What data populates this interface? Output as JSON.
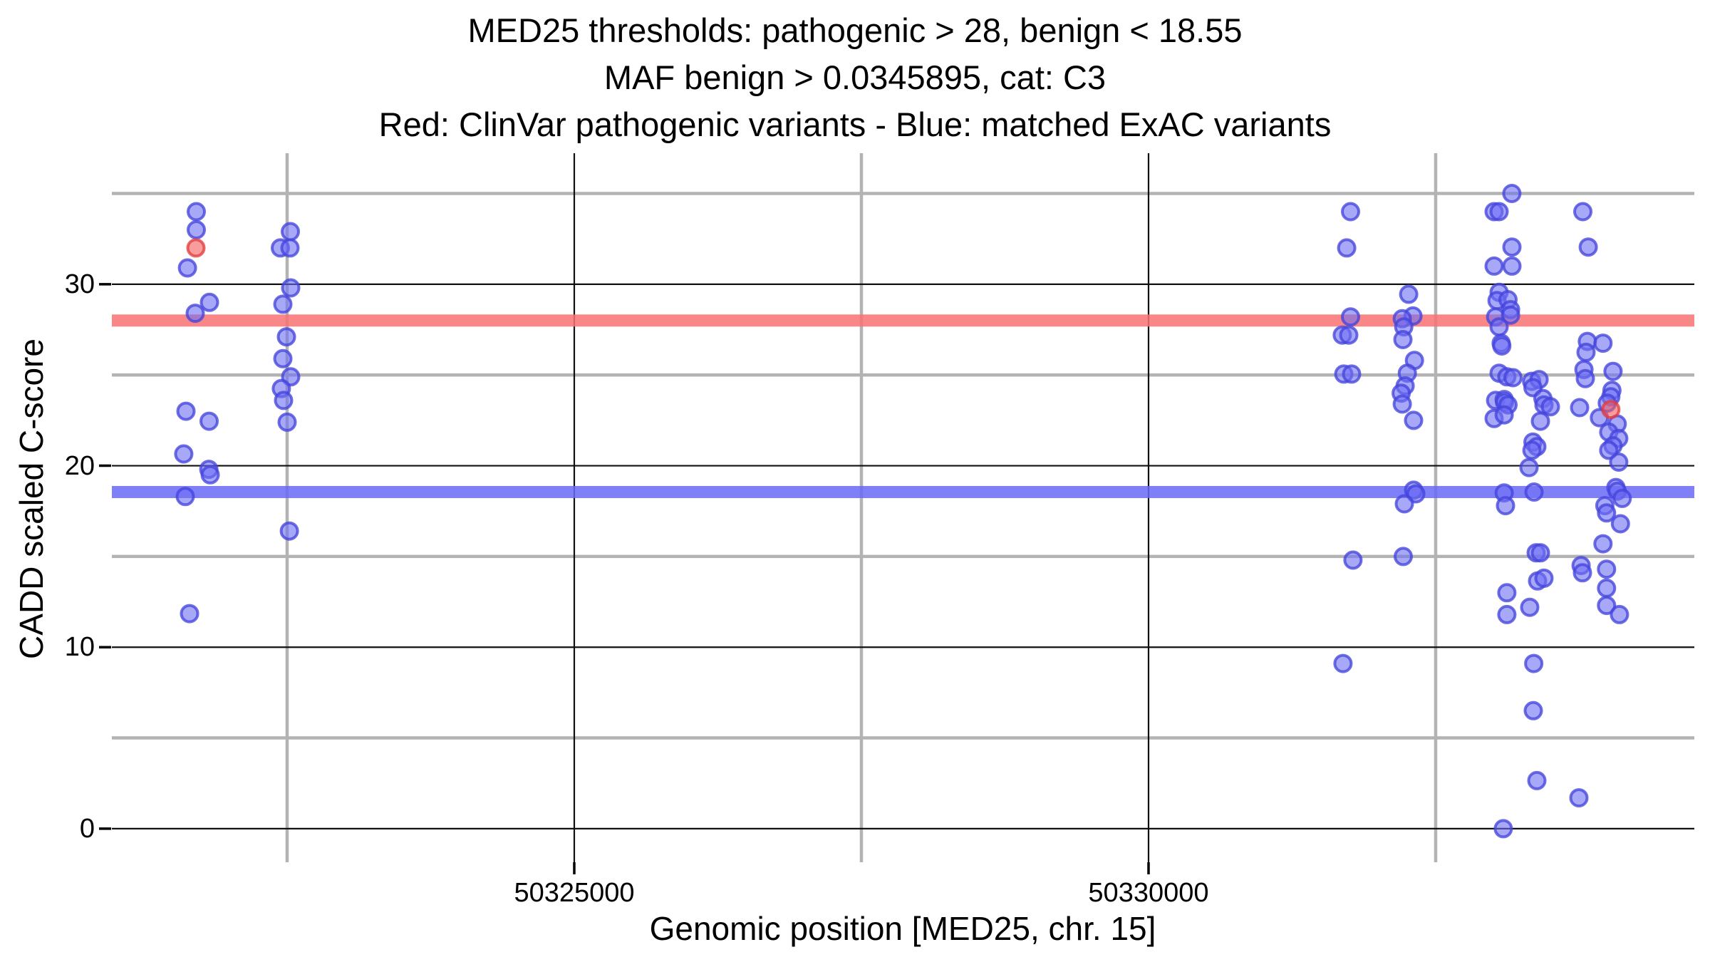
{
  "chart_data": {
    "type": "scatter",
    "title_lines": [
      "MED25 thresholds: pathogenic > 28, benign < 18.55",
      "MAF benign > 0.0345895, cat: C3",
      "Red: ClinVar pathogenic variants - Blue: matched ExAC variants"
    ],
    "xlabel": "Genomic position [MED25, chr. 15]",
    "ylabel": "CADD scaled C-score",
    "gene": "MED25",
    "category": "C3",
    "thresholds": {
      "pathogenic": 28,
      "benign": 18.55,
      "maf_benign": 0.0345895
    },
    "xlim": [
      50320974,
      50334752
    ],
    "ylim": [
      -1.85,
      37.22
    ],
    "x_ticks": [
      50325000,
      50330000
    ],
    "x_minor_ticks": [
      50322500,
      50327500,
      50332500
    ],
    "y_ticks": [
      0,
      10,
      20,
      30
    ],
    "y_minor_ticks": [
      5,
      15,
      25,
      35
    ],
    "grid": "major-black-minor-gray",
    "legend_position": "none",
    "colors": {
      "pathogenic_band": "#f87272",
      "benign_band": "#6969f7",
      "blue_point_fill": "#6e6ef5",
      "blue_point_stroke": "#4444dc",
      "red_point_fill": "#f55a5a",
      "red_point_stroke": "#e13c3c",
      "major_grid": "#111111",
      "minor_grid": "#b3b3b3"
    },
    "series": [
      {
        "name": "ClinVar pathogenic variants",
        "color_key": "red",
        "points": [
          [
            50321706,
            32.0
          ],
          [
            50334025,
            23.1
          ]
        ]
      },
      {
        "name": "matched ExAC variants",
        "color_key": "blue",
        "points": [
          [
            50321709,
            34
          ],
          [
            50321709,
            33
          ],
          [
            50321632,
            30.9
          ],
          [
            50321824,
            29
          ],
          [
            50321700,
            28.4
          ],
          [
            50321619,
            23
          ],
          [
            50321821,
            22.45
          ],
          [
            50321600,
            20.65
          ],
          [
            50321818,
            19.8
          ],
          [
            50321830,
            19.5
          ],
          [
            50321613,
            18.3
          ],
          [
            50321650,
            11.85
          ],
          [
            50322528,
            32.9
          ],
          [
            50322441,
            32
          ],
          [
            50322525,
            32
          ],
          [
            50322531,
            29.8
          ],
          [
            50322463,
            28.9
          ],
          [
            50322494,
            27.1
          ],
          [
            50322463,
            25.9
          ],
          [
            50322531,
            24.9
          ],
          [
            50322450,
            24.25
          ],
          [
            50322469,
            23.6
          ],
          [
            50322500,
            22.4
          ],
          [
            50322519,
            16.4
          ],
          [
            50331759,
            34
          ],
          [
            50331725,
            32
          ],
          [
            50331759,
            28.2
          ],
          [
            50331687,
            27.2
          ],
          [
            50331743,
            27.2
          ],
          [
            50331700,
            25.05
          ],
          [
            50331768,
            25.05
          ],
          [
            50331780,
            14.8
          ],
          [
            50331693,
            9.1
          ],
          [
            50332265,
            29.45
          ],
          [
            50332302,
            28.25
          ],
          [
            50332209,
            28.1
          ],
          [
            50332222,
            27.65
          ],
          [
            50332215,
            26.95
          ],
          [
            50332315,
            25.8
          ],
          [
            50332253,
            25.1
          ],
          [
            50332234,
            24.4
          ],
          [
            50332200,
            24
          ],
          [
            50332209,
            23.4
          ],
          [
            50332308,
            22.5
          ],
          [
            50332308,
            18.65
          ],
          [
            50332327,
            18.45
          ],
          [
            50332227,
            17.9
          ],
          [
            50332218,
            15
          ],
          [
            50333163,
            35
          ],
          [
            50333009,
            34
          ],
          [
            50333052,
            34
          ],
          [
            50333164,
            32.05
          ],
          [
            50333009,
            31
          ],
          [
            50333164,
            31
          ],
          [
            50333052,
            29.55
          ],
          [
            50333034,
            29.1
          ],
          [
            50333130,
            29.15
          ],
          [
            50333152,
            28.6
          ],
          [
            50333022,
            28.2
          ],
          [
            50333152,
            28.3
          ],
          [
            50333052,
            27.65
          ],
          [
            50333070,
            26.75
          ],
          [
            50333076,
            26.6
          ],
          [
            50333052,
            25.1
          ],
          [
            50333120,
            24.9
          ],
          [
            50333173,
            24.85
          ],
          [
            50333022,
            23.6
          ],
          [
            50333096,
            23.65
          ],
          [
            50333100,
            23.5
          ],
          [
            50333130,
            23.35
          ],
          [
            50333009,
            22.6
          ],
          [
            50333096,
            22.8
          ],
          [
            50333096,
            18.5
          ],
          [
            50333108,
            17.8
          ],
          [
            50333120,
            13
          ],
          [
            50333120,
            11.8
          ],
          [
            50333089,
            0
          ],
          [
            50333313,
            19.9
          ],
          [
            50333336,
            24.65
          ],
          [
            50333400,
            24.75
          ],
          [
            50333347,
            24.3
          ],
          [
            50333434,
            23.7
          ],
          [
            50333443,
            23.35
          ],
          [
            50333499,
            23.25
          ],
          [
            50333412,
            22.45
          ],
          [
            50333347,
            21.3
          ],
          [
            50333381,
            21.05
          ],
          [
            50333338,
            20.85
          ],
          [
            50333356,
            18.55
          ],
          [
            50333375,
            15.2
          ],
          [
            50333412,
            15.2
          ],
          [
            50333387,
            13.65
          ],
          [
            50333443,
            13.8
          ],
          [
            50333319,
            12.2
          ],
          [
            50333354,
            9.1
          ],
          [
            50333350,
            6.5
          ],
          [
            50333381,
            2.65
          ],
          [
            50333781,
            34
          ],
          [
            50333828,
            32.05
          ],
          [
            50333821,
            26.85
          ],
          [
            50333809,
            26.25
          ],
          [
            50333791,
            25.3
          ],
          [
            50333803,
            24.8
          ],
          [
            50333753,
            23.2
          ],
          [
            50333766,
            14.5
          ],
          [
            50333778,
            14.1
          ],
          [
            50333747,
            1.7
          ],
          [
            50333957,
            26.75
          ],
          [
            50334044,
            25.2
          ],
          [
            50334035,
            24.15
          ],
          [
            50334025,
            23.8
          ],
          [
            50333994,
            23.45
          ],
          [
            50333926,
            22.65
          ],
          [
            50334081,
            22.3
          ],
          [
            50334007,
            21.85
          ],
          [
            50334094,
            21.5
          ],
          [
            50334044,
            21.1
          ],
          [
            50334007,
            20.85
          ],
          [
            50334094,
            20.2
          ],
          [
            50334069,
            18.8
          ],
          [
            50334081,
            18.6
          ],
          [
            50334124,
            18.2
          ],
          [
            50333973,
            17.8
          ],
          [
            50333988,
            17.4
          ],
          [
            50334109,
            16.8
          ],
          [
            50333957,
            15.7
          ],
          [
            50333988,
            14.3
          ],
          [
            50333988,
            13.25
          ],
          [
            50333988,
            12.3
          ],
          [
            50334100,
            11.8
          ]
        ]
      }
    ]
  }
}
